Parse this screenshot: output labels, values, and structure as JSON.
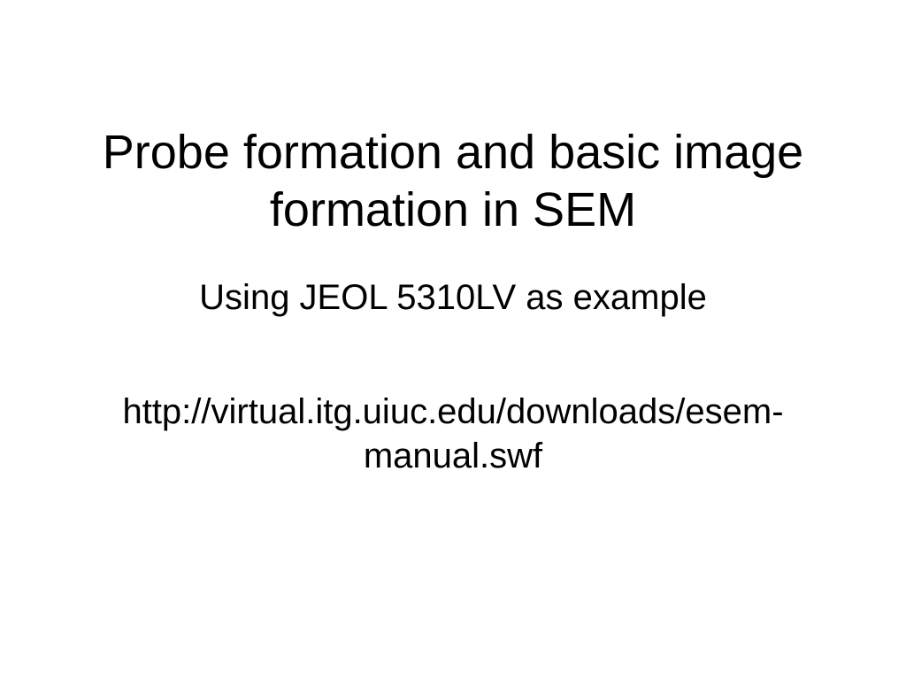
{
  "slide": {
    "title": "Probe formation and basic image formation in SEM",
    "subtitle": "Using JEOL 5310LV as example",
    "link": "http://virtual.itg.uiuc.edu/downloads/esem-manual.swf",
    "background_color": "#ffffff",
    "text_color": "#000000",
    "title_fontsize": 54,
    "subtitle_fontsize": 40,
    "link_fontsize": 40,
    "font_family": "Arial, Helvetica, sans-serif"
  }
}
